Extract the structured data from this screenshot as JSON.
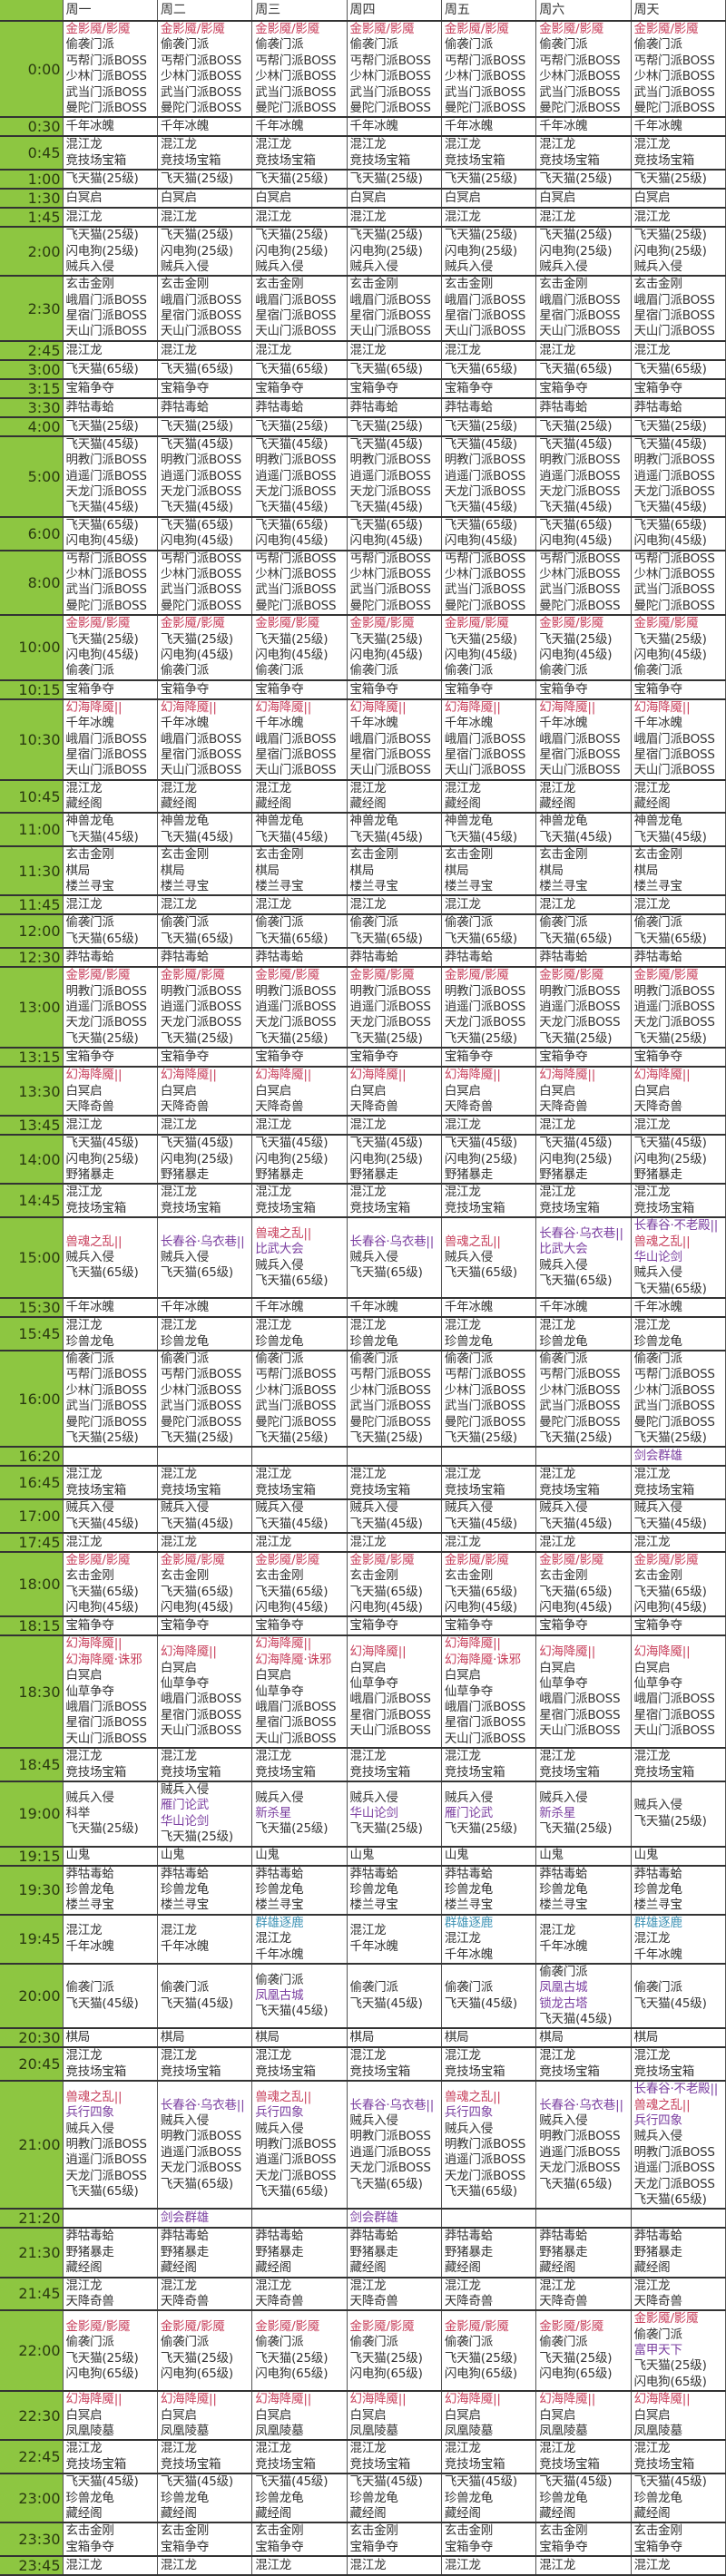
{
  "header": {
    "corner": "",
    "days": [
      "周一",
      "周二",
      "周三",
      "周四",
      "周五",
      "周六",
      "周天"
    ]
  },
  "colors": {
    "time_column": "#8dc641",
    "red": "#c8405c",
    "purple": "#7b3fa0",
    "teal": "#3f93b5"
  },
  "highlight": {
    "金影魇/影魇": "red",
    "幻海降魇||": "red",
    "幻海降魇·诛邪": "red",
    "兽魂之乱||": "red",
    "长春谷·乌衣巷||": "purple",
    "长春谷·不老殿||": "purple",
    "比武大会": "purple",
    "华山论剑": "purple",
    "雁门论武": "purple",
    "新杀星": "purple",
    "剑会群雄": "purple",
    "兵行四象": "purple",
    "凤凰古城": "purple",
    "锁龙古塔": "purple",
    "富甲天下": "purple",
    "群雄逐鹿": "teal"
  },
  "rows": [
    {
      "time": "0:00",
      "all": [
        "金影魇/影魇",
        "偷袭门派",
        "丐帮门派BOSS",
        "少林门派BOSS",
        "武当门派BOSS",
        "曼陀门派BOSS"
      ]
    },
    {
      "time": "0:30",
      "all": [
        "千年冰魄"
      ]
    },
    {
      "time": "0:45",
      "all": [
        "混江龙",
        "竞技场宝箱"
      ]
    },
    {
      "time": "1:00",
      "all": [
        "飞天猫(25级)"
      ]
    },
    {
      "time": "1:30",
      "all": [
        "白冥启"
      ]
    },
    {
      "time": "1:45",
      "all": [
        "混江龙"
      ]
    },
    {
      "time": "2:00",
      "all": [
        "飞天猫(25级)",
        "闪电狗(25级)",
        "贼兵入侵"
      ]
    },
    {
      "time": "2:30",
      "all": [
        "玄击金刚",
        "峨眉门派BOSS",
        "星宿门派BOSS",
        "天山门派BOSS"
      ]
    },
    {
      "time": "2:45",
      "all": [
        "混江龙"
      ]
    },
    {
      "time": "3:00",
      "all": [
        "飞天猫(65级)"
      ]
    },
    {
      "time": "3:15",
      "all": [
        "宝箱争夺"
      ]
    },
    {
      "time": "3:30",
      "all": [
        "莽牯毒蛤"
      ]
    },
    {
      "time": "4:00",
      "all": [
        "飞天猫(25级)"
      ]
    },
    {
      "time": "5:00",
      "all": [
        "飞天猫(45级)",
        "明教门派BOSS",
        "逍遥门派BOSS",
        "天龙门派BOSS",
        "飞天猫(45级)"
      ]
    },
    {
      "time": "6:00",
      "all": [
        "飞天猫(65级)",
        "闪电狗(45级)"
      ]
    },
    {
      "time": "8:00",
      "all": [
        "丐帮门派BOSS",
        "少林门派BOSS",
        "武当门派BOSS",
        "曼陀门派BOSS"
      ]
    },
    {
      "time": "10:00",
      "all": [
        "金影魇/影魇",
        "飞天猫(25级)",
        "闪电狗(45级)",
        "偷袭门派"
      ]
    },
    {
      "time": "10:15",
      "all": [
        "宝箱争夺"
      ]
    },
    {
      "time": "10:30",
      "all": [
        "幻海降魇||",
        "千年冰魄",
        "峨眉门派BOSS",
        "星宿门派BOSS",
        "天山门派BOSS"
      ]
    },
    {
      "time": "10:45",
      "all": [
        "混江龙",
        "藏经阁"
      ]
    },
    {
      "time": "11:00",
      "all": [
        "神兽龙龟",
        "飞天猫(45级)"
      ]
    },
    {
      "time": "11:30",
      "all": [
        "玄击金刚",
        "棋局",
        "楼兰寻宝"
      ]
    },
    {
      "time": "11:45",
      "all": [
        "混江龙"
      ]
    },
    {
      "time": "12:00",
      "all": [
        "偷袭门派",
        "飞天猫(65级)"
      ]
    },
    {
      "time": "12:30",
      "all": [
        "莽牯毒蛤"
      ]
    },
    {
      "time": "13:00",
      "all": [
        "金影魇/影魇",
        "明教门派BOSS",
        "逍遥门派BOSS",
        "天龙门派BOSS",
        "飞天猫(25级)"
      ]
    },
    {
      "time": "13:15",
      "all": [
        "宝箱争夺"
      ]
    },
    {
      "time": "13:30",
      "all": [
        "幻海降魇||",
        "白冥启",
        "天降奇兽"
      ]
    },
    {
      "time": "13:45",
      "all": [
        "混江龙"
      ]
    },
    {
      "time": "14:00",
      "all": [
        "飞天猫(45级)",
        "闪电狗(25级)",
        "野猪暴走"
      ]
    },
    {
      "time": "14:45",
      "all": [
        "混江龙",
        "竞技场宝箱"
      ]
    },
    {
      "time": "15:00",
      "cells": [
        [
          "兽魂之乱||",
          "贼兵入侵",
          "飞天猫(65级)"
        ],
        [
          "长春谷·乌衣巷||",
          "贼兵入侵",
          "飞天猫(65级)"
        ],
        [
          "兽魂之乱||",
          "比武大会",
          "贼兵入侵",
          "飞天猫(65级)"
        ],
        [
          "长春谷·乌衣巷||",
          "贼兵入侵",
          "飞天猫(65级)"
        ],
        [
          "兽魂之乱||",
          "贼兵入侵",
          "飞天猫(65级)"
        ],
        [
          "长春谷·乌衣巷||",
          "比武大会",
          "贼兵入侵",
          "飞天猫(65级)"
        ],
        [
          "长春谷·不老殿||",
          "兽魂之乱||",
          "华山论剑",
          "贼兵入侵",
          "飞天猫(65级)"
        ]
      ]
    },
    {
      "time": "15:30",
      "all": [
        "千年冰魄"
      ]
    },
    {
      "time": "15:45",
      "all": [
        "混江龙",
        "珍兽龙龟"
      ]
    },
    {
      "time": "16:00",
      "all": [
        "偷袭门派",
        "丐帮门派BOSS",
        "少林门派BOSS",
        "武当门派BOSS",
        "曼陀门派BOSS",
        "飞天猫(25级)"
      ]
    },
    {
      "time": "16:20",
      "cells": [
        [],
        [],
        [],
        [],
        [],
        [],
        [
          "剑会群雄"
        ]
      ]
    },
    {
      "time": "16:45",
      "all": [
        "混江龙",
        "竞技场宝箱"
      ]
    },
    {
      "time": "17:00",
      "all": [
        "贼兵入侵",
        "飞天猫(45级)"
      ]
    },
    {
      "time": "17:45",
      "all": [
        "混江龙"
      ]
    },
    {
      "time": "18:00",
      "all": [
        "金影魇/影魇",
        "玄击金刚",
        "飞天猫(65级)",
        "闪电狗(45级)"
      ]
    },
    {
      "time": "18:15",
      "all": [
        "宝箱争夺"
      ]
    },
    {
      "time": "18:30",
      "cells": [
        [
          "幻海降魇||",
          "幻海降魇·诛邪",
          "白冥启",
          "仙草争夺",
          "峨眉门派BOSS",
          "星宿门派BOSS",
          "天山门派BOSS"
        ],
        [
          "幻海降魇||",
          "白冥启",
          "仙草争夺",
          "峨眉门派BOSS",
          "星宿门派BOSS",
          "天山门派BOSS"
        ],
        [
          "幻海降魇||",
          "幻海降魇·诛邪",
          "白冥启",
          "仙草争夺",
          "峨眉门派BOSS",
          "星宿门派BOSS",
          "天山门派BOSS"
        ],
        [
          "幻海降魇||",
          "白冥启",
          "仙草争夺",
          "峨眉门派BOSS",
          "星宿门派BOSS",
          "天山门派BOSS"
        ],
        [
          "幻海降魇||",
          "幻海降魇·诛邪",
          "白冥启",
          "仙草争夺",
          "峨眉门派BOSS",
          "星宿门派BOSS",
          "天山门派BOSS"
        ],
        [
          "幻海降魇||",
          "白冥启",
          "仙草争夺",
          "峨眉门派BOSS",
          "星宿门派BOSS",
          "天山门派BOSS"
        ],
        [
          "幻海降魇||",
          "白冥启",
          "仙草争夺",
          "峨眉门派BOSS",
          "星宿门派BOSS",
          "天山门派BOSS"
        ]
      ]
    },
    {
      "time": "18:45",
      "all": [
        "混江龙",
        "竞技场宝箱"
      ]
    },
    {
      "time": "19:00",
      "cells": [
        [
          "贼兵入侵",
          "科举",
          "飞天猫(25级)"
        ],
        [
          "贼兵入侵",
          "雁门论武",
          "华山论剑",
          "飞天猫(25级)"
        ],
        [
          "贼兵入侵",
          "新杀星",
          "飞天猫(25级)"
        ],
        [
          "贼兵入侵",
          "华山论剑",
          "飞天猫(25级)"
        ],
        [
          "贼兵入侵",
          "雁门论武",
          "飞天猫(25级)"
        ],
        [
          "贼兵入侵",
          "新杀星",
          "飞天猫(25级)"
        ],
        [
          "贼兵入侵",
          "飞天猫(25级)"
        ]
      ]
    },
    {
      "time": "19:15",
      "all": [
        "山鬼"
      ]
    },
    {
      "time": "19:30",
      "all": [
        "莽牯毒蛤",
        "珍兽龙龟",
        "楼兰寻宝"
      ]
    },
    {
      "time": "19:45",
      "cells": [
        [
          "混江龙",
          "千年冰魄"
        ],
        [
          "混江龙",
          "千年冰魄"
        ],
        [
          "群雄逐鹿",
          "混江龙",
          "千年冰魄"
        ],
        [
          "混江龙",
          "千年冰魄"
        ],
        [
          "群雄逐鹿",
          "混江龙",
          "千年冰魄"
        ],
        [
          "混江龙",
          "千年冰魄"
        ],
        [
          "群雄逐鹿",
          "混江龙",
          "千年冰魄"
        ]
      ]
    },
    {
      "time": "20:00",
      "cells": [
        [
          "偷袭门派",
          "飞天猫(45级)"
        ],
        [
          "偷袭门派",
          "飞天猫(45级)"
        ],
        [
          "偷袭门派",
          "凤凰古城",
          "飞天猫(45级)"
        ],
        [
          "偷袭门派",
          "飞天猫(45级)"
        ],
        [
          "偷袭门派",
          "飞天猫(45级)"
        ],
        [
          "偷袭门派",
          "凤凰古城",
          "锁龙古塔",
          "飞天猫(45级)"
        ],
        [
          "偷袭门派",
          "飞天猫(45级)"
        ]
      ]
    },
    {
      "time": "20:30",
      "all": [
        "棋局"
      ]
    },
    {
      "time": "20:45",
      "all": [
        "混江龙",
        "竞技场宝箱"
      ]
    },
    {
      "time": "21:00",
      "cells": [
        [
          "兽魂之乱||",
          "兵行四象",
          "贼兵入侵",
          "明教门派BOSS",
          "逍遥门派BOSS",
          "天龙门派BOSS",
          "飞天猫(65级)"
        ],
        [
          "长春谷·乌衣巷||",
          "贼兵入侵",
          "明教门派BOSS",
          "逍遥门派BOSS",
          "天龙门派BOSS",
          "飞天猫(65级)"
        ],
        [
          "兽魂之乱||",
          "兵行四象",
          "贼兵入侵",
          "明教门派BOSS",
          "逍遥门派BOSS",
          "天龙门派BOSS",
          "飞天猫(65级)"
        ],
        [
          "长春谷·乌衣巷||",
          "贼兵入侵",
          "明教门派BOSS",
          "逍遥门派BOSS",
          "天龙门派BOSS",
          "飞天猫(65级)"
        ],
        [
          "兽魂之乱||",
          "兵行四象",
          "贼兵入侵",
          "明教门派BOSS",
          "逍遥门派BOSS",
          "天龙门派BOSS",
          "飞天猫(65级)"
        ],
        [
          "长春谷·乌衣巷||",
          "贼兵入侵",
          "明教门派BOSS",
          "逍遥门派BOSS",
          "天龙门派BOSS",
          "飞天猫(65级)"
        ],
        [
          "长春谷·不老殿||",
          "兽魂之乱||",
          "兵行四象",
          "贼兵入侵",
          "明教门派BOSS",
          "逍遥门派BOSS",
          "天龙门派BOSS",
          "飞天猫(65级)"
        ]
      ]
    },
    {
      "time": "21:20",
      "cells": [
        [],
        [
          "剑会群雄"
        ],
        [],
        [
          "剑会群雄"
        ],
        [],
        [],
        []
      ]
    },
    {
      "time": "21:30",
      "all": [
        "莽牯毒蛤",
        "野猪暴走",
        "藏经阁"
      ]
    },
    {
      "time": "21:45",
      "all": [
        "混江龙",
        "天降奇兽"
      ]
    },
    {
      "time": "22:00",
      "cells": [
        [
          "金影魇/影魇",
          "偷袭门派",
          "飞天猫(25级)",
          "闪电狗(65级)"
        ],
        [
          "金影魇/影魇",
          "偷袭门派",
          "飞天猫(25级)",
          "闪电狗(65级)"
        ],
        [
          "金影魇/影魇",
          "偷袭门派",
          "飞天猫(25级)",
          "闪电狗(65级)"
        ],
        [
          "金影魇/影魇",
          "偷袭门派",
          "飞天猫(25级)",
          "闪电狗(65级)"
        ],
        [
          "金影魇/影魇",
          "偷袭门派",
          "飞天猫(25级)",
          "闪电狗(65级)"
        ],
        [
          "金影魇/影魇",
          "偷袭门派",
          "飞天猫(25级)",
          "闪电狗(65级)"
        ],
        [
          "金影魇/影魇",
          "偷袭门派",
          "富甲天下",
          "飞天猫(25级)",
          "闪电狗(65级)"
        ]
      ]
    },
    {
      "time": "22:30",
      "all": [
        "幻海降魇||",
        "白冥启",
        "凤凰陵墓"
      ]
    },
    {
      "time": "22:45",
      "all": [
        "混江龙",
        "竞技场宝箱"
      ]
    },
    {
      "time": "23:00",
      "all": [
        "飞天猫(45级)",
        "珍兽龙龟",
        "藏经阁"
      ]
    },
    {
      "time": "23:30",
      "all": [
        "玄击金刚",
        "宝箱争夺"
      ]
    },
    {
      "time": "23:45",
      "all": [
        "混江龙"
      ]
    }
  ]
}
